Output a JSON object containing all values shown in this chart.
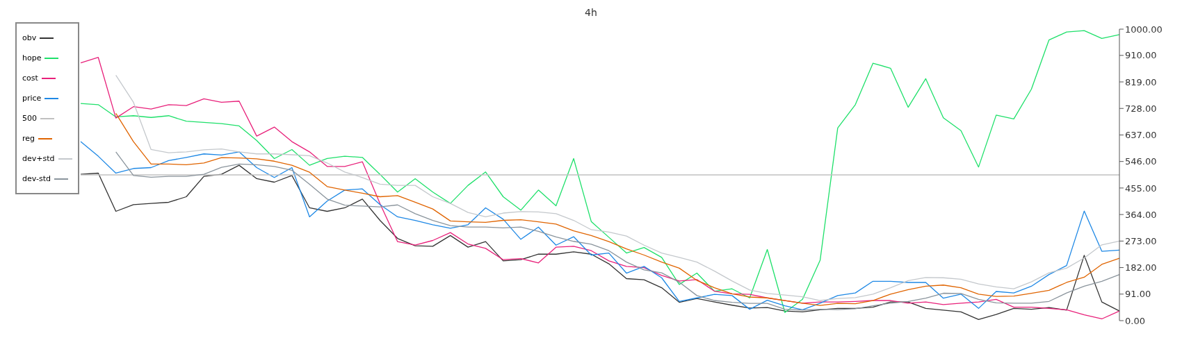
{
  "chart_data": {
    "type": "line",
    "title": "4h",
    "categories": [
      null,
      null,
      null,
      null,
      null,
      null,
      null,
      null,
      null,
      null,
      null,
      null,
      null,
      null,
      null,
      null,
      null,
      null,
      null,
      null,
      null,
      null,
      null,
      null,
      null,
      null,
      null,
      null,
      null,
      null,
      null,
      null,
      null,
      null,
      null,
      null,
      null,
      null,
      null,
      null,
      null,
      null,
      null,
      null,
      null,
      null,
      null,
      null,
      null,
      null,
      null,
      null,
      null,
      null,
      null,
      null,
      null,
      null,
      null,
      null
    ],
    "series": [
      {
        "name": "obv",
        "color": "#333333",
        "values": [
          502,
          506,
          375,
          398,
          402,
          406,
          425,
          495,
          502,
          533,
          487,
          475,
          498,
          387,
          375,
          387,
          417,
          344,
          282,
          257,
          255,
          292,
          252,
          271,
          205,
          209,
          228,
          228,
          236,
          228,
          195,
          144,
          140,
          113,
          63,
          76,
          64,
          53,
          43,
          45,
          33,
          30,
          37,
          42,
          42,
          46,
          64,
          64,
          42,
          36,
          30,
          4,
          21,
          42,
          39,
          45,
          36,
          224,
          64,
          33
        ]
      },
      {
        "name": "hope",
        "color": "#1ee06a",
        "values": [
          745,
          741,
          699,
          703,
          697,
          703,
          684,
          680,
          676,
          668,
          618,
          556,
          587,
          533,
          556,
          564,
          560,
          502,
          441,
          487,
          441,
          402,
          464,
          510,
          425,
          379,
          448,
          394,
          556,
          340,
          286,
          232,
          251,
          217,
          124,
          163,
          101,
          109,
          78,
          244,
          28,
          73,
          207,
          661,
          741,
          883,
          866,
          732,
          830,
          696,
          652,
          527,
          705,
          692,
          794,
          963,
          990,
          995,
          968,
          981
        ]
      },
      {
        "name": "cost",
        "color": "#e8207a",
        "values": [
          884,
          903,
          695,
          734,
          726,
          741,
          738,
          761,
          749,
          753,
          633,
          664,
          614,
          579,
          529,
          529,
          545,
          402,
          271,
          259,
          275,
          302,
          263,
          248,
          209,
          213,
          198,
          252,
          255,
          240,
          205,
          186,
          182,
          155,
          136,
          141,
          101,
          92,
          90,
          78,
          69,
          60,
          64,
          64,
          66,
          69,
          69,
          60,
          64,
          55,
          60,
          64,
          73,
          46,
          46,
          42,
          37,
          20,
          6,
          33
        ]
      },
      {
        "name": "price",
        "color": "#1e88e5",
        "values": [
          614,
          564,
          506,
          522,
          525,
          549,
          560,
          572,
          568,
          579,
          525,
          491,
          525,
          356,
          410,
          448,
          452,
          398,
          356,
          344,
          329,
          317,
          329,
          387,
          348,
          279,
          321,
          259,
          288,
          225,
          232,
          163,
          186,
          147,
          66,
          78,
          90,
          86,
          39,
          70,
          51,
          37,
          60,
          86,
          95,
          135,
          135,
          131,
          131,
          77,
          91,
          42,
          100,
          95,
          118,
          158,
          189,
          376,
          238,
          242
        ]
      },
      {
        "name": "500",
        "color": "#c0c0c0",
        "values": [
          500,
          500,
          500,
          500,
          500,
          500,
          500,
          500,
          500,
          500,
          500,
          500,
          500,
          500,
          500,
          500,
          500,
          500,
          500,
          500,
          500,
          500,
          500,
          500,
          500,
          500,
          500,
          500,
          500,
          500,
          500,
          500,
          500,
          500,
          500,
          500,
          500,
          500,
          500,
          500,
          500,
          500,
          500,
          500,
          500,
          500,
          500,
          500,
          500,
          500,
          500,
          500,
          500,
          500,
          500,
          500,
          500,
          500,
          500,
          500
        ]
      },
      {
        "name": "reg",
        "color": "#e06400",
        "values": [
          null,
          null,
          711,
          614,
          537,
          537,
          535,
          541,
          559,
          558,
          555,
          547,
          533,
          509,
          460,
          448,
          437,
          425,
          429,
          406,
          383,
          342,
          339,
          337,
          344,
          346,
          339,
          331,
          308,
          292,
          271,
          246,
          225,
          201,
          180,
          138,
          113,
          92,
          81,
          78,
          69,
          60,
          52,
          59,
          58,
          69,
          91,
          106,
          118,
          122,
          113,
          91,
          83,
          84,
          94,
          104,
          131,
          149,
          193,
          214
        ]
      },
      {
        "name": "dev+std",
        "color": "#c4c8cc",
        "values": [
          null,
          null,
          842,
          749,
          587,
          576,
          579,
          586,
          589,
          579,
          572,
          572,
          569,
          566,
          541,
          510,
          491,
          468,
          464,
          464,
          425,
          402,
          371,
          356,
          369,
          374,
          373,
          367,
          344,
          312,
          304,
          290,
          259,
          232,
          217,
          201,
          170,
          136,
          105,
          93,
          88,
          82,
          69,
          76,
          79,
          91,
          113,
          137,
          148,
          147,
          142,
          126,
          116,
          109,
          133,
          164,
          180,
          215,
          260,
          273
        ]
      },
      {
        "name": "dev-std",
        "color": "#8a949c",
        "values": [
          null,
          null,
          579,
          498,
          492,
          495,
          495,
          502,
          526,
          537,
          535,
          529,
          516,
          468,
          417,
          396,
          393,
          390,
          397,
          367,
          344,
          326,
          321,
          321,
          318,
          321,
          306,
          287,
          272,
          262,
          240,
          201,
          174,
          164,
          132,
          86,
          69,
          63,
          59,
          59,
          39,
          36,
          39,
          38,
          41,
          51,
          60,
          66,
          77,
          94,
          93,
          73,
          61,
          60,
          60,
          66,
          95,
          118,
          135,
          158
        ]
      }
    ],
    "ylim": [
      0,
      1000
    ],
    "yticks": [
      {
        "value": 0,
        "label": "0.00"
      },
      {
        "value": 91,
        "label": "91.00"
      },
      {
        "value": 182,
        "label": "182.00"
      },
      {
        "value": 273,
        "label": "273.00"
      },
      {
        "value": 364,
        "label": "364.00"
      },
      {
        "value": 455,
        "label": "455.00"
      },
      {
        "value": 546,
        "label": "546.00"
      },
      {
        "value": 637,
        "label": "637.00"
      },
      {
        "value": 728,
        "label": "728.00"
      },
      {
        "value": 819,
        "label": "819.00"
      },
      {
        "value": 910,
        "label": "910.00"
      },
      {
        "value": 1000,
        "label": "1000.00"
      }
    ],
    "tick_labels": "y",
    "grid": false,
    "legend": "top left",
    "marker": "none",
    "line_style": "solid"
  }
}
